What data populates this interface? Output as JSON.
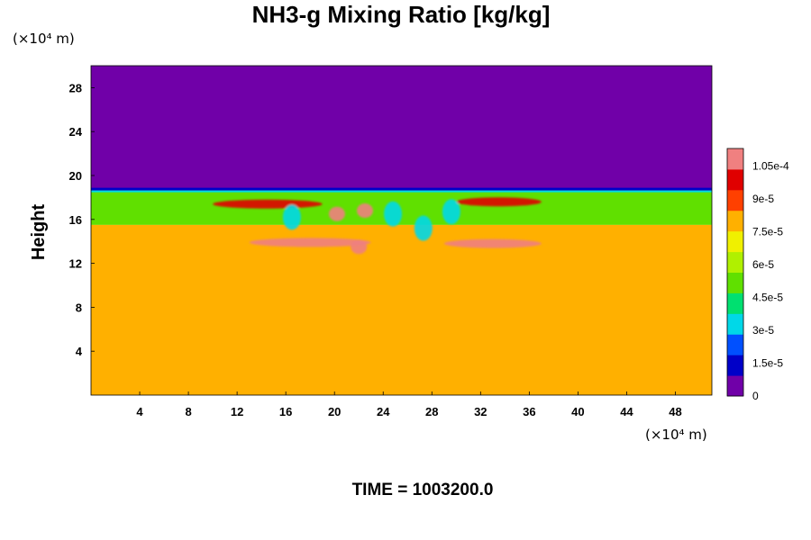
{
  "chart_data": {
    "type": "heatmap",
    "title": "NH3-g Mixing Ratio [kg/kg]",
    "ylabel": "Height",
    "xlabel": "",
    "x_unit_label": "(×10⁴ m)",
    "y_unit_label": "(×10⁴ m)",
    "x_ticks": [
      4,
      8,
      12,
      16,
      20,
      24,
      28,
      32,
      36,
      40,
      44,
      48
    ],
    "y_ticks": [
      4,
      8,
      12,
      16,
      20,
      24,
      28
    ],
    "xlim": [
      0,
      51
    ],
    "ylim": [
      0,
      30
    ],
    "grid": false,
    "colorbar": {
      "vmin": 0,
      "vmax": 0.000113,
      "tick_values": [
        0,
        1.5e-05,
        3e-05,
        4.5e-05,
        6e-05,
        7.5e-05,
        9e-05,
        0.000105
      ],
      "tick_labels": [
        "0",
        "1.5e-5",
        "3e-5",
        "4.5e-5",
        "6e-5",
        "7.5e-5",
        "9e-5",
        "1.05e-4"
      ],
      "colormap": [
        "#7000a8",
        "#0000c8",
        "#0050ff",
        "#00d8e8",
        "#00e070",
        "#60e000",
        "#b0f000",
        "#f0f000",
        "#ffb000",
        "#ff4000",
        "#e00000",
        "#f08080"
      ]
    },
    "field_regions": [
      {
        "name": "upper layer",
        "y_range": [
          18.8,
          30
        ],
        "value": 0
      },
      {
        "name": "middle band",
        "y_range": [
          15.5,
          18.8
        ],
        "value": 5.5e-05
      },
      {
        "name": "lower layer",
        "y_range": [
          0,
          15.5
        ],
        "value": 7.8e-05
      }
    ],
    "field_features": [
      {
        "name": "high-value streak",
        "x_range": [
          10,
          19
        ],
        "y": 17.4,
        "value": 0.0001
      },
      {
        "name": "high-value streak",
        "x_range": [
          30,
          37
        ],
        "y": 17.6,
        "value": 9.5e-05
      },
      {
        "name": "high-value streak",
        "x_range": [
          13,
          23
        ],
        "y": 13.9,
        "value": 0.000105
      },
      {
        "name": "high-value streak",
        "x_range": [
          29,
          37
        ],
        "y": 13.8,
        "value": 0.000105
      },
      {
        "name": "high-value patch",
        "x": 20.2,
        "y": 16.5,
        "value": 0.00011
      },
      {
        "name": "high-value patch",
        "x": 22.5,
        "y": 16.8,
        "value": 0.00011
      },
      {
        "name": "high-value patch",
        "x": 22.0,
        "y": 13.5,
        "value": 0.00011
      },
      {
        "name": "low-value intrusion",
        "x": 24.8,
        "y": 16.5,
        "value": 3e-05
      },
      {
        "name": "low-value intrusion",
        "x": 16.5,
        "y": 16.2,
        "value": 3e-05
      },
      {
        "name": "low-value intrusion",
        "x": 27.3,
        "y": 15.2,
        "value": 3e-05
      },
      {
        "name": "low-value intrusion",
        "x": 29.6,
        "y": 16.7,
        "value": 3e-05
      }
    ]
  },
  "footer": {
    "time_label": "TIME = 1003200.0"
  }
}
